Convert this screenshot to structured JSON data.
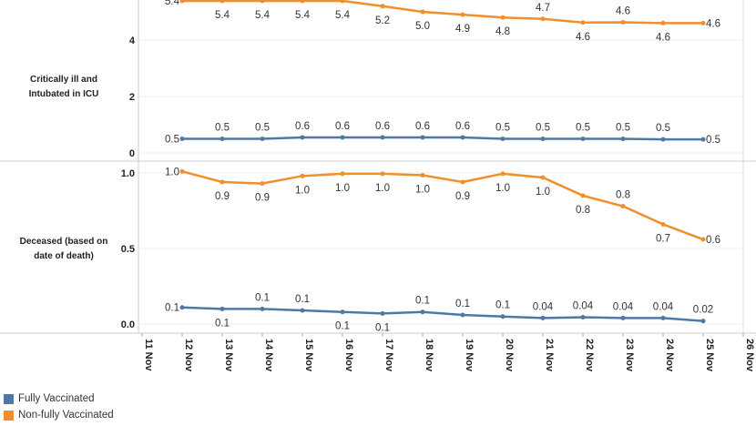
{
  "chart_data": [
    {
      "type": "line",
      "row_label": [
        "Critically ill and",
        "Intubated in ICU"
      ],
      "categories": [
        "12 Nov",
        "13 Nov",
        "14 Nov",
        "15 Nov",
        "16 Nov",
        "17 Nov",
        "18 Nov",
        "19 Nov",
        "20 Nov",
        "21 Nov",
        "22 Nov",
        "23 Nov",
        "24 Nov",
        "25 Nov"
      ],
      "yticks": [
        "0",
        "2",
        "4"
      ],
      "ylim": [
        0,
        5.45
      ],
      "series": [
        {
          "name": "Fully Vaccinated",
          "values": [
            0.5,
            0.5,
            0.5,
            0.55,
            0.55,
            0.55,
            0.55,
            0.55,
            0.5,
            0.5,
            0.5,
            0.5,
            0.48,
            0.48
          ],
          "labels": [
            "0.5",
            "0.5",
            "0.5",
            "0.6",
            "0.6",
            "0.6",
            "0.6",
            "0.6",
            "0.5",
            "0.5",
            "0.5",
            "0.5",
            "0.5",
            "0.5"
          ]
        },
        {
          "name": "Non-fully Vaccinated",
          "values": [
            5.4,
            5.4,
            5.4,
            5.42,
            5.4,
            5.2,
            5.0,
            4.9,
            4.8,
            4.75,
            4.62,
            4.63,
            4.6,
            4.6
          ],
          "labels": [
            "5.4",
            "5.4",
            "5.4",
            "5.4",
            "5.4",
            "5.2",
            "5.0",
            "4.9",
            "4.8",
            "4.7",
            "4.6",
            "4.6",
            "4.6",
            "4.6"
          ]
        }
      ]
    },
    {
      "type": "line",
      "row_label": [
        "Deceased (based on",
        "date of death)"
      ],
      "categories": [
        "12 Nov",
        "13 Nov",
        "14 Nov",
        "15 Nov",
        "16 Nov",
        "17 Nov",
        "18 Nov",
        "19 Nov",
        "20 Nov",
        "21 Nov",
        "22 Nov",
        "23 Nov",
        "24 Nov",
        "25 Nov"
      ],
      "yticks": [
        "0.0",
        "0.5",
        "1.0"
      ],
      "ylim": [
        0,
        1.0
      ],
      "series": [
        {
          "name": "Fully Vaccinated",
          "values": [
            0.11,
            0.1,
            0.1,
            0.09,
            0.08,
            0.07,
            0.08,
            0.06,
            0.05,
            0.04,
            0.045,
            0.04,
            0.04,
            0.02
          ],
          "labels": [
            "0.1",
            "0.1",
            "0.1",
            "0.1",
            "0.1",
            "0.1",
            "0.1",
            "0.1",
            "0.1",
            "0.04",
            "0.04",
            "0.04",
            "0.04",
            "0.02"
          ]
        },
        {
          "name": "Non-fully Vaccinated",
          "values": [
            1.01,
            0.94,
            0.93,
            0.98,
            0.995,
            0.995,
            0.985,
            0.94,
            0.995,
            0.97,
            0.85,
            0.78,
            0.66,
            0.56
          ],
          "labels": [
            "1.0",
            "0.9",
            "0.9",
            "1.0",
            "1.0",
            "1.0",
            "1.0",
            "0.9",
            "1.0",
            "1.0",
            "0.8",
            "0.8",
            "0.7",
            "0.6"
          ]
        }
      ]
    }
  ],
  "x_axis_labels": [
    "11 Nov",
    "12 Nov",
    "13 Nov",
    "14 Nov",
    "15 Nov",
    "16 Nov",
    "17 Nov",
    "18 Nov",
    "19 Nov",
    "20 Nov",
    "21 Nov",
    "22 Nov",
    "23 Nov",
    "24 Nov",
    "25 Nov",
    "26 Nov"
  ],
  "legend": [
    {
      "label": "Fully Vaccinated",
      "color": "#4e79a7"
    },
    {
      "label": "Non-fully Vaccinated",
      "color": "#f28e2b"
    }
  ]
}
